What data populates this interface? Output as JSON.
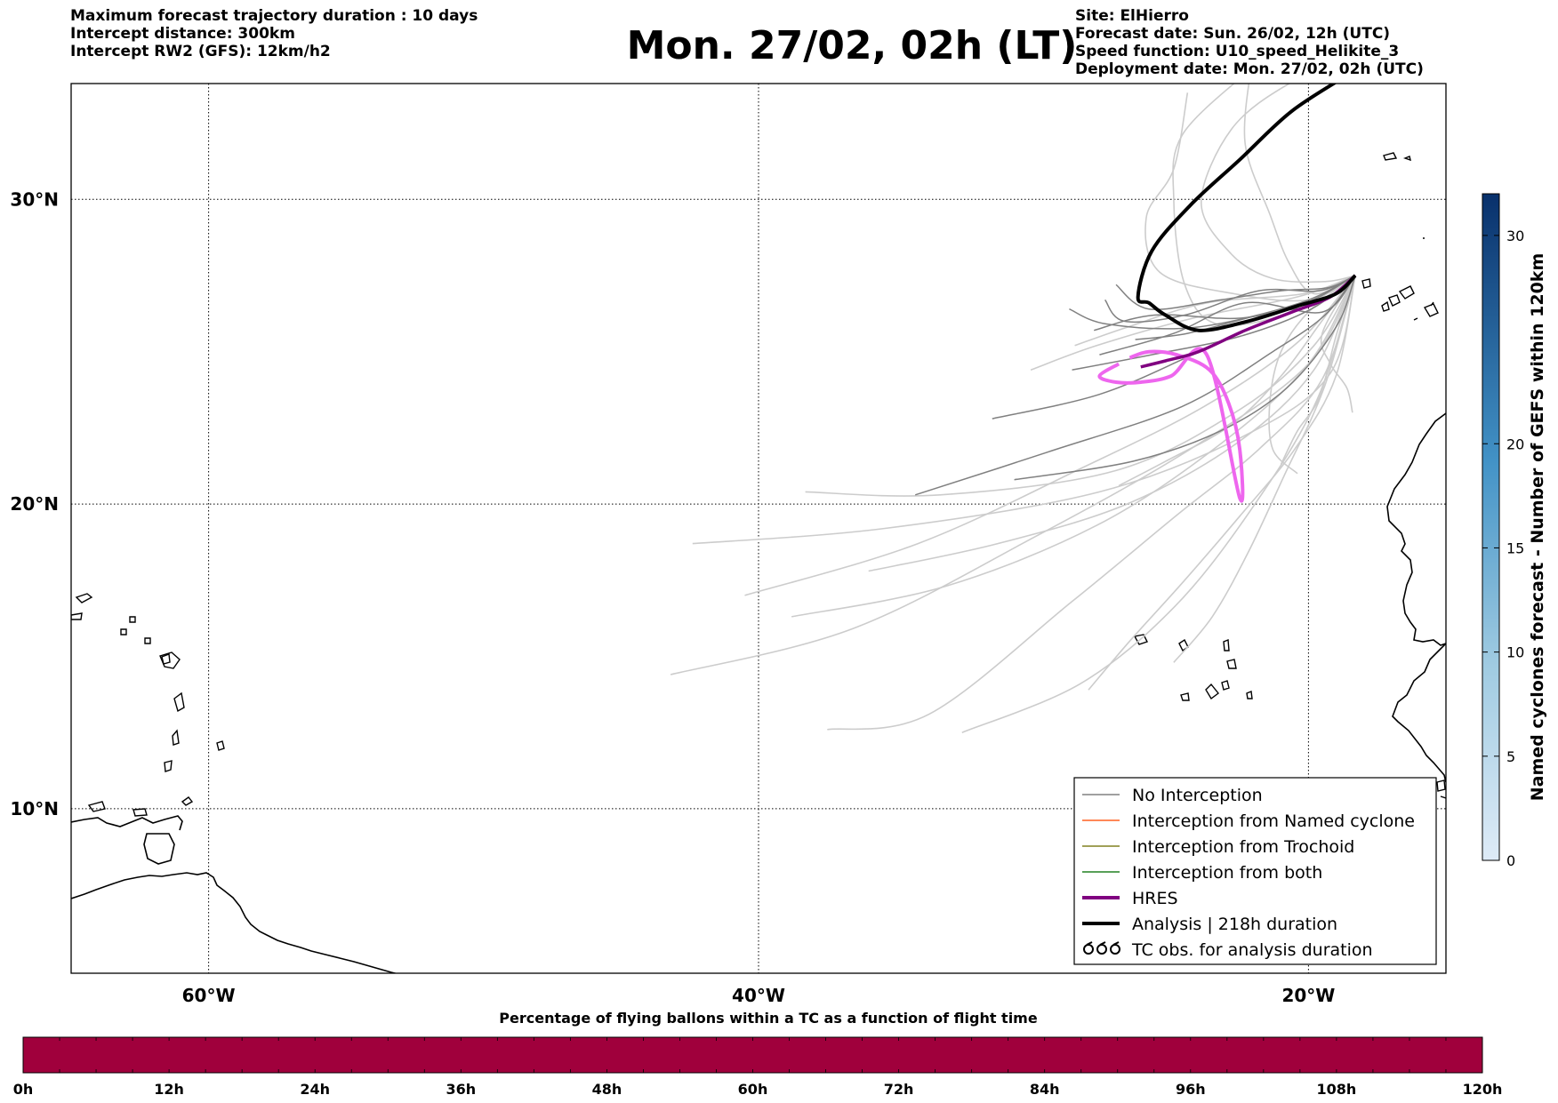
{
  "header": {
    "left_lines": [
      "Maximum forecast trajectory duration : 10 days",
      "Intercept distance: 300km",
      "Intercept RW2 (GFS):  12km/h2"
    ],
    "title": "Mon. 27/02, 02h (LT)",
    "right_lines": [
      "Site: ElHierro",
      "Forecast date: Sun. 26/02, 12h (UTC)",
      "Speed function: U10_speed_Helikite_3",
      "Deployment date: Mon. 27/02, 02h (UTC)"
    ]
  },
  "colors": {
    "no_interception": "#808080",
    "ensemble_faint": "#cccccc",
    "named_cyclone": "#ff6020",
    "trochoid": "#808020",
    "both": "#208020",
    "hres": "#800080",
    "hres_light": "#ee66ee",
    "analysis": "#000000",
    "bottom_bar": "#a0003c",
    "colorbar_low": "#deebf7",
    "colorbar_high": "#08306b"
  },
  "chart_data": [
    {
      "type": "map",
      "projection": "equirectangular",
      "lon_range": [
        -65,
        -15
      ],
      "lat_range": [
        4.6,
        33.8
      ],
      "grid": true,
      "xticks": [
        {
          "value": -60,
          "label": "60°W"
        },
        {
          "value": -40,
          "label": "40°W"
        },
        {
          "value": -20,
          "label": "20°W"
        }
      ],
      "yticks": [
        {
          "value": 10,
          "label": "10°N"
        },
        {
          "value": 20,
          "label": "20°N"
        },
        {
          "value": 30,
          "label": "30°N"
        }
      ],
      "legend_position": "lower-right",
      "legend": [
        {
          "label": "No Interception",
          "style": "thin",
          "color_key": "no_interception"
        },
        {
          "label": "Interception from Named cyclone",
          "style": "thin",
          "color_key": "named_cyclone"
        },
        {
          "label": "Interception from Trochoid",
          "style": "thin",
          "color_key": "trochoid"
        },
        {
          "label": "Interception from both",
          "style": "thin",
          "color_key": "both"
        },
        {
          "label": "HRES",
          "style": "thick",
          "color_key": "hres"
        },
        {
          "label": "Analysis | 218h duration",
          "style": "thick",
          "color_key": "analysis"
        },
        {
          "label": "TC obs. for analysis duration",
          "style": "cyclone",
          "color_key": "analysis"
        }
      ],
      "launch_site": {
        "name": "ElHierro",
        "lon": -18.3,
        "lat": 27.5
      },
      "trajectories": {
        "analysis": [
          [
            -18.3,
            27.5
          ],
          [
            -19.0,
            26.9
          ],
          [
            -20.4,
            26.5
          ],
          [
            -22.2,
            26.0
          ],
          [
            -24.0,
            25.7
          ],
          [
            -25.2,
            26.2
          ],
          [
            -25.8,
            26.6
          ],
          [
            -26.2,
            26.8
          ],
          [
            -25.7,
            28.3
          ],
          [
            -24.3,
            29.8
          ],
          [
            -22.5,
            31.3
          ],
          [
            -20.6,
            32.9
          ],
          [
            -18.4,
            34.2
          ],
          [
            -17.0,
            35.2
          ]
        ],
        "hres": [
          [
            -18.3,
            27.5
          ],
          [
            -19.2,
            26.8
          ],
          [
            -20.6,
            26.3
          ],
          [
            -22.3,
            25.7
          ],
          [
            -24.0,
            25.0
          ],
          [
            -25.2,
            24.7
          ],
          [
            -26.1,
            24.5
          ]
        ],
        "hres_light": [
          [
            -26.5,
            24.8
          ],
          [
            -25.8,
            25.0
          ],
          [
            -24.8,
            24.9
          ],
          [
            -23.6,
            24.4
          ],
          [
            -22.9,
            23.3
          ],
          [
            -22.5,
            21.8
          ],
          [
            -22.5,
            20.2
          ],
          [
            -23.7,
            24.9
          ],
          [
            -25.0,
            24.2
          ],
          [
            -26.1,
            24.0
          ],
          [
            -27.0,
            24.0
          ],
          [
            -27.6,
            24.2
          ],
          [
            -26.9,
            24.6
          ]
        ],
        "no_interception": [
          [
            [
              -18.3,
              27.5
            ],
            [
              -19.6,
              26.6
            ],
            [
              -21.8,
              26.2
            ],
            [
              -24.4,
              25.6
            ],
            [
              -26.3,
              25.4
            ]
          ],
          [
            [
              -18.3,
              27.5
            ],
            [
              -19.9,
              26.4
            ],
            [
              -22.5,
              25.5
            ],
            [
              -25.7,
              24.9
            ],
            [
              -28.6,
              24.4
            ]
          ],
          [
            [
              -18.3,
              27.5
            ],
            [
              -19.4,
              26.7
            ],
            [
              -21.5,
              26.0
            ],
            [
              -24.2,
              24.9
            ],
            [
              -27.6,
              23.6
            ],
            [
              -31.5,
              22.8
            ]
          ],
          [
            [
              -18.3,
              27.5
            ],
            [
              -19.4,
              26.2
            ],
            [
              -21.3,
              25.0
            ],
            [
              -24.6,
              23.2
            ],
            [
              -29.5,
              21.7
            ],
            [
              -34.3,
              20.3
            ]
          ],
          [
            [
              -18.3,
              27.5
            ],
            [
              -19.6,
              27.0
            ],
            [
              -21.8,
              27.0
            ],
            [
              -24.5,
              26.2
            ],
            [
              -26.7,
              26.0
            ],
            [
              -27.4,
              26.7
            ]
          ],
          [
            [
              -18.3,
              27.5
            ],
            [
              -20.1,
              26.6
            ],
            [
              -22.5,
              26.1
            ],
            [
              -25.6,
              26.2
            ],
            [
              -27.8,
              25.7
            ]
          ],
          [
            [
              -18.3,
              27.5
            ],
            [
              -19.0,
              25.8
            ],
            [
              -20.8,
              23.8
            ],
            [
              -23.2,
              22.4
            ],
            [
              -26.4,
              21.4
            ],
            [
              -30.7,
              20.8
            ]
          ],
          [
            [
              -18.3,
              27.5
            ],
            [
              -19.5,
              26.3
            ],
            [
              -22.3,
              26.6
            ],
            [
              -24.9,
              25.6
            ],
            [
              -27.6,
              24.9
            ]
          ],
          [
            [
              -18.3,
              27.5
            ],
            [
              -20.3,
              26.6
            ],
            [
              -24.1,
              25.8
            ],
            [
              -27.3,
              25.9
            ],
            [
              -28.7,
              26.4
            ]
          ],
          [
            [
              -18.3,
              27.5
            ],
            [
              -19.3,
              27.1
            ],
            [
              -21.0,
              27.0
            ],
            [
              -23.2,
              26.7
            ],
            [
              -25.8,
              26.4
            ],
            [
              -27.0,
              27.2
            ]
          ]
        ],
        "faint": [
          [
            [
              -18.3,
              27.5
            ],
            [
              -19.0,
              25.5
            ],
            [
              -19.6,
              23.5
            ],
            [
              -20.4,
              22.4
            ],
            [
              -21.0,
              21.3
            ]
          ],
          [
            [
              -18.3,
              27.5
            ],
            [
              -19.2,
              24.3
            ],
            [
              -22.2,
              22.3
            ],
            [
              -27.6,
              20.4
            ],
            [
              -35.4,
              19.2
            ],
            [
              -42.4,
              18.7
            ]
          ],
          [
            [
              -18.3,
              27.5
            ],
            [
              -20.0,
              24.6
            ],
            [
              -24.3,
              21.8
            ],
            [
              -30.0,
              18.9
            ],
            [
              -36.6,
              15.9
            ],
            [
              -43.2,
              14.4
            ]
          ],
          [
            [
              -18.3,
              27.5
            ],
            [
              -19.5,
              24.1
            ],
            [
              -21.8,
              21.8
            ],
            [
              -24.7,
              19.7
            ],
            [
              -28.6,
              16.8
            ],
            [
              -33.8,
              13.1
            ],
            [
              -37.5,
              12.6
            ]
          ],
          [
            [
              -18.3,
              27.5
            ],
            [
              -19.7,
              23.4
            ],
            [
              -22.1,
              19.8
            ],
            [
              -24.9,
              16.6
            ],
            [
              -28.3,
              14.1
            ],
            [
              -32.6,
              12.5
            ]
          ],
          [
            [
              -18.3,
              27.5
            ],
            [
              -19.0,
              24.2
            ],
            [
              -20.5,
              21.8
            ],
            [
              -22.5,
              19.6
            ],
            [
              -24.6,
              17.4
            ],
            [
              -26.5,
              15.5
            ],
            [
              -28.0,
              13.9
            ]
          ],
          [
            [
              -18.3,
              27.5
            ],
            [
              -19.8,
              25.2
            ],
            [
              -22.5,
              23.1
            ],
            [
              -27.0,
              21.1
            ],
            [
              -33.4,
              20.3
            ],
            [
              -38.3,
              20.4
            ]
          ],
          [
            [
              -18.3,
              27.5
            ],
            [
              -20.0,
              24.6
            ],
            [
              -23.3,
              21.9
            ],
            [
              -27.7,
              19.3
            ],
            [
              -33.2,
              17.3
            ],
            [
              -38.8,
              16.3
            ]
          ],
          [
            [
              -18.3,
              27.5
            ],
            [
              -20.4,
              25.3
            ],
            [
              -23.8,
              23.2
            ],
            [
              -28.2,
              21.2
            ],
            [
              -34.2,
              18.7
            ],
            [
              -40.5,
              17.0
            ]
          ],
          [
            [
              -18.3,
              27.5
            ],
            [
              -20.6,
              26.3
            ],
            [
              -23.3,
              25.9
            ],
            [
              -24.5,
              27.2
            ],
            [
              -24.9,
              30.0
            ],
            [
              -24.6,
              32.1
            ],
            [
              -22.2,
              34.2
            ]
          ],
          [
            [
              -18.3,
              27.5
            ],
            [
              -19.4,
              27.3
            ],
            [
              -21.3,
              27.4
            ],
            [
              -22.8,
              28.2
            ],
            [
              -23.9,
              29.9
            ],
            [
              -22.8,
              32.3
            ],
            [
              -20.7,
              33.8
            ],
            [
              -18.6,
              34.5
            ]
          ],
          [
            [
              -18.3,
              27.5
            ],
            [
              -20.0,
              26.7
            ],
            [
              -22.7,
              26.9
            ],
            [
              -25.4,
              27.6
            ],
            [
              -25.9,
              29.4
            ],
            [
              -24.9,
              31.0
            ],
            [
              -24.4,
              33.5
            ]
          ],
          [
            [
              -18.3,
              27.5
            ],
            [
              -19.8,
              26.9
            ],
            [
              -20.7,
              27.9
            ],
            [
              -21.4,
              29.5
            ],
            [
              -22.3,
              31.8
            ],
            [
              -22.1,
              34.3
            ]
          ],
          [
            [
              -18.3,
              27.5
            ],
            [
              -19.5,
              25.6
            ],
            [
              -19.2,
              24.6
            ],
            [
              -18.6,
              23.8
            ],
            [
              -18.4,
              23.0
            ]
          ],
          [
            [
              -18.3,
              27.5
            ],
            [
              -20.0,
              26.3
            ],
            [
              -21.0,
              25.0
            ],
            [
              -21.4,
              23.4
            ],
            [
              -21.3,
              21.8
            ],
            [
              -20.4,
              21.0
            ]
          ],
          [
            [
              -18.3,
              27.5
            ],
            [
              -19.6,
              25.9
            ],
            [
              -21.0,
              24.2
            ],
            [
              -22.8,
              22.6
            ],
            [
              -25.2,
              21.4
            ],
            [
              -26.9,
              20.6
            ]
          ],
          [
            [
              -18.3,
              27.5
            ],
            [
              -20.4,
              26.8
            ],
            [
              -24.2,
              26.1
            ],
            [
              -27.7,
              25.2
            ],
            [
              -30.1,
              24.4
            ]
          ],
          [
            [
              -18.3,
              27.5
            ],
            [
              -20.2,
              26.9
            ],
            [
              -23.7,
              26.6
            ],
            [
              -26.6,
              25.8
            ],
            [
              -28.5,
              25.2
            ]
          ],
          [
            [
              -18.3,
              27.5
            ],
            [
              -19.4,
              23.9
            ],
            [
              -20.9,
              20.9
            ],
            [
              -22.2,
              18.4
            ],
            [
              -23.5,
              16.3
            ],
            [
              -24.9,
              14.8
            ]
          ],
          [
            [
              -18.3,
              27.5
            ],
            [
              -19.8,
              24.4
            ],
            [
              -22.6,
              22.0
            ],
            [
              -26.6,
              20.0
            ],
            [
              -31.3,
              18.7
            ],
            [
              -36.0,
              17.8
            ]
          ]
        ]
      }
    },
    {
      "type": "colorbar",
      "orientation": "vertical",
      "label": "Named cyclones forecast - Number of GEFS within 120km",
      "range": [
        0,
        32
      ],
      "ticks": [
        0,
        5,
        10,
        15,
        20,
        30
      ]
    },
    {
      "type": "bar",
      "orientation": "horizontal",
      "title": "Percentage of flying ballons within a TC as a function of flight time",
      "categories": [
        "0h",
        "12h",
        "24h",
        "36h",
        "48h",
        "60h",
        "72h",
        "84h",
        "96h",
        "108h",
        "120h"
      ],
      "range_hours": [
        0,
        120
      ],
      "segment_count": 40
    }
  ]
}
